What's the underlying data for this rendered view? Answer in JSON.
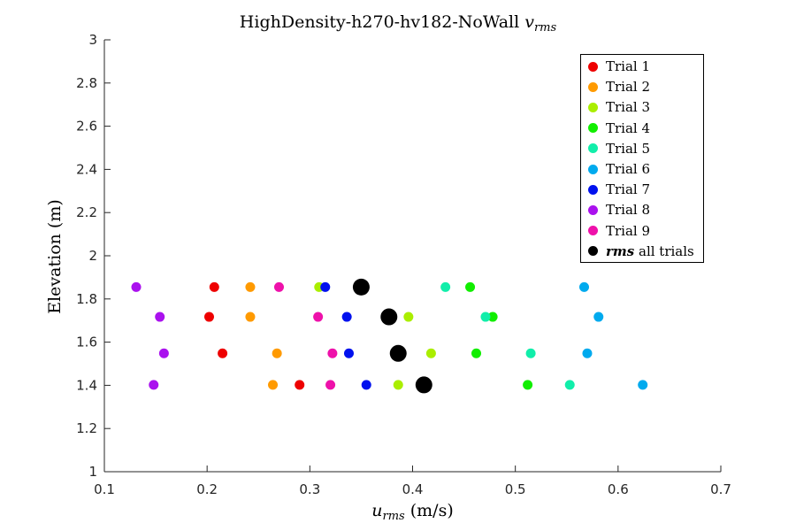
{
  "chart_data": {
    "type": "scatter",
    "title_text": "HighDensity-h270-hv182-NoWall",
    "title_var": "v",
    "title_var_sub": "rms",
    "xlabel_var": "u",
    "xlabel_var_sub": "rms",
    "xlabel_units": "(m/s)",
    "ylabel": "Elevation (m)",
    "xlim": [
      0.1,
      0.7
    ],
    "ylim": [
      1,
      3
    ],
    "xticks": [
      "0.1",
      "0.2",
      "0.3",
      "0.4",
      "0.5",
      "0.6",
      "0.7"
    ],
    "yticks": [
      "1",
      "1.2",
      "1.4",
      "1.6",
      "1.8",
      "2",
      "2.2",
      "2.4",
      "2.6",
      "2.8",
      "3"
    ],
    "grid": false,
    "legend_position": "top-right",
    "series": [
      {
        "name": "Trial 1",
        "color": "#ee0000",
        "points": [
          [
            0.207,
            1.855
          ],
          [
            0.202,
            1.717
          ],
          [
            0.215,
            1.548
          ],
          [
            0.29,
            1.402
          ]
        ]
      },
      {
        "name": "Trial 2",
        "color": "#ff9a00",
        "points": [
          [
            0.242,
            1.855
          ],
          [
            0.242,
            1.717
          ],
          [
            0.268,
            1.548
          ],
          [
            0.264,
            1.402
          ]
        ]
      },
      {
        "name": "Trial 3",
        "color": "#aaee00",
        "points": [
          [
            0.309,
            1.855
          ],
          [
            0.396,
            1.717
          ],
          [
            0.418,
            1.548
          ],
          [
            0.386,
            1.402
          ]
        ]
      },
      {
        "name": "Trial 4",
        "color": "#11ee00",
        "points": [
          [
            0.456,
            1.855
          ],
          [
            0.478,
            1.717
          ],
          [
            0.462,
            1.548
          ],
          [
            0.512,
            1.402
          ]
        ]
      },
      {
        "name": "Trial 5",
        "color": "#11eeaa",
        "points": [
          [
            0.432,
            1.855
          ],
          [
            0.471,
            1.717
          ],
          [
            0.515,
            1.548
          ],
          [
            0.553,
            1.402
          ]
        ]
      },
      {
        "name": "Trial 6",
        "color": "#00aaee",
        "points": [
          [
            0.567,
            1.855
          ],
          [
            0.581,
            1.717
          ],
          [
            0.57,
            1.548
          ],
          [
            0.624,
            1.402
          ]
        ]
      },
      {
        "name": "Trial 7",
        "color": "#0011ee",
        "points": [
          [
            0.315,
            1.855
          ],
          [
            0.336,
            1.717
          ],
          [
            0.338,
            1.548
          ],
          [
            0.355,
            1.402
          ]
        ]
      },
      {
        "name": "Trial 8",
        "color": "#aa11ee",
        "points": [
          [
            0.131,
            1.855
          ],
          [
            0.154,
            1.717
          ],
          [
            0.158,
            1.548
          ],
          [
            0.148,
            1.402
          ]
        ]
      },
      {
        "name": "Trial 9",
        "color": "#ee11aa",
        "points": [
          [
            0.27,
            1.855
          ],
          [
            0.308,
            1.717
          ],
          [
            0.322,
            1.548
          ],
          [
            0.32,
            1.402
          ]
        ]
      }
    ],
    "rms_series": {
      "name_italic": "rms",
      "name_rest": " all trials",
      "color": "#000000",
      "points": [
        [
          0.35,
          1.855
        ],
        [
          0.377,
          1.717
        ],
        [
          0.386,
          1.548
        ],
        [
          0.411,
          1.402
        ]
      ]
    }
  }
}
